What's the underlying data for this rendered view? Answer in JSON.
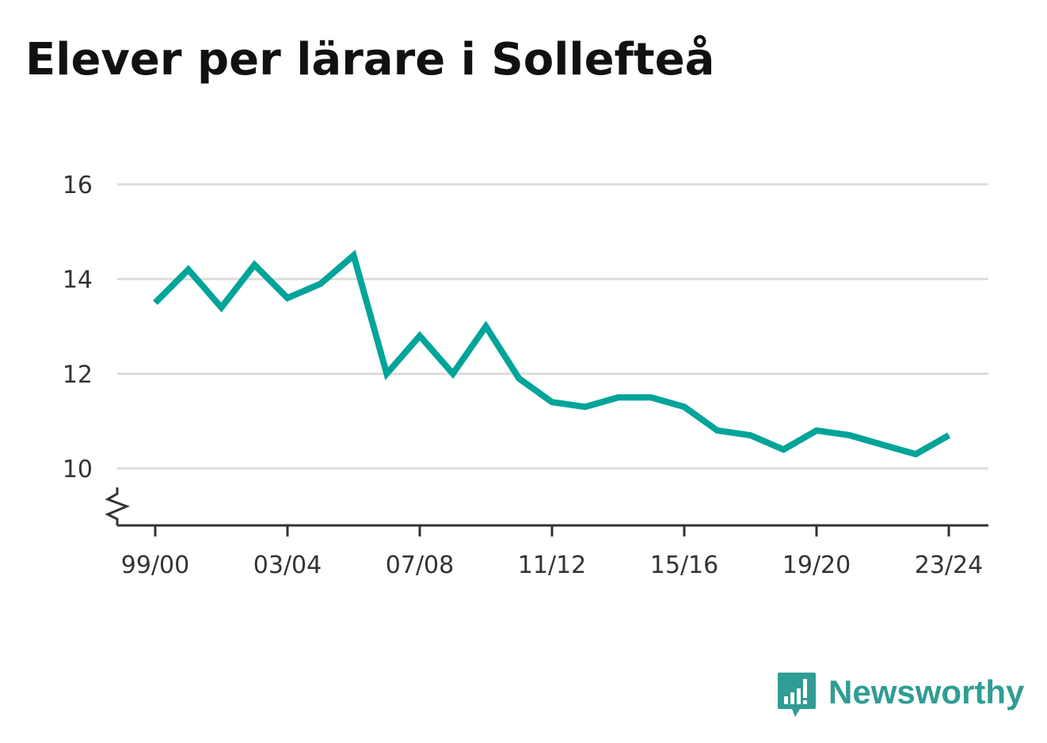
{
  "title": "Elever per lärare i Sollefteå",
  "colors": {
    "line": "#00a499",
    "grid": "#dddddd",
    "axis": "#333333",
    "title": "#111111",
    "brand": "#2f9d93"
  },
  "brand": {
    "name": "Newsworthy",
    "icon": "bar-chart-speech-bubble-icon"
  },
  "chart_data": {
    "type": "line",
    "title": "Elever per lärare i Sollefteå",
    "xlabel": "",
    "ylabel": "",
    "x": [
      "99/00",
      "00/01",
      "01/02",
      "02/03",
      "03/04",
      "04/05",
      "05/06",
      "06/07",
      "07/08",
      "08/09",
      "09/10",
      "10/11",
      "11/12",
      "12/13",
      "13/14",
      "14/15",
      "15/16",
      "16/17",
      "17/18",
      "18/19",
      "19/20",
      "20/21",
      "21/22",
      "22/23",
      "23/24"
    ],
    "series": [
      {
        "values": [
          13.5,
          14.2,
          13.4,
          14.3,
          13.6,
          13.9,
          14.5,
          12.0,
          12.8,
          12.0,
          13.0,
          11.9,
          11.4,
          11.3,
          11.5,
          11.5,
          11.3,
          10.8,
          10.7,
          10.4,
          10.8,
          10.7,
          10.5,
          10.3,
          10.7
        ]
      }
    ],
    "x_tick_labels": [
      "99/00",
      "03/04",
      "07/08",
      "11/12",
      "15/16",
      "19/20",
      "23/24"
    ],
    "y_ticks": [
      10,
      12,
      14,
      16
    ],
    "ylim": [
      10,
      16
    ],
    "y_axis_break": true,
    "grid": true,
    "legend": "none"
  }
}
